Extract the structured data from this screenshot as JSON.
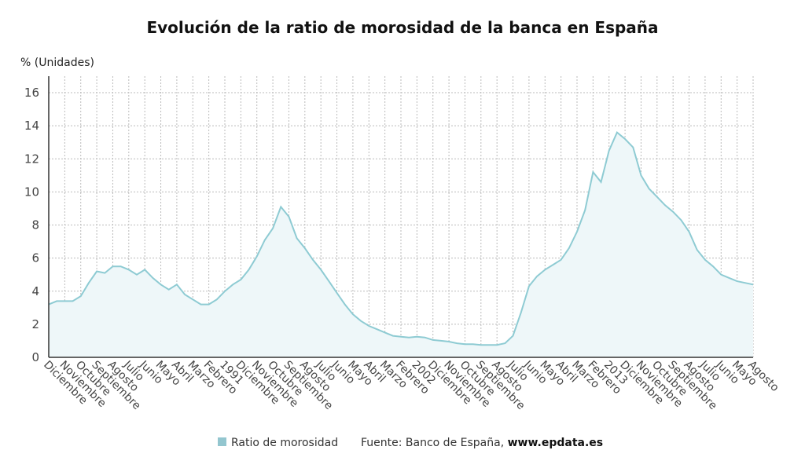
{
  "chart_data": {
    "type": "line",
    "title": "Evolución de la ratio de morosidad de la banca en España",
    "y_axis_label": "% (Unidades)",
    "categories": [
      "Diciembre",
      null,
      "Noviembre",
      null,
      "Octubre",
      null,
      "Septiembre",
      null,
      "Agosto",
      null,
      "Julio",
      null,
      "Junio",
      null,
      "Mayo",
      null,
      "Abril",
      null,
      "Marzo",
      null,
      "Febrero",
      null,
      "1991",
      null,
      "Diciembre",
      null,
      "Noviembre",
      null,
      "Octubre",
      null,
      "Septiembre",
      null,
      "Agosto",
      null,
      "Julio",
      null,
      "Junio",
      null,
      "Mayo",
      null,
      "Abril",
      null,
      "Marzo",
      null,
      "Febrero",
      null,
      "2002",
      null,
      "Diciembre",
      null,
      "Noviembre",
      null,
      "Octubre",
      null,
      "Septiembre",
      null,
      "Agosto",
      null,
      "Julio",
      null,
      "Junio",
      null,
      "Mayo",
      null,
      "Abril",
      null,
      "Marzo",
      null,
      "Febrero",
      null,
      "2013",
      null,
      "Diciembre",
      null,
      "Noviembre",
      null,
      "Octubre",
      null,
      "Septiembre",
      null,
      "Agosto",
      null,
      "Julio",
      null,
      "Junio",
      null,
      "Mayo",
      null,
      "Agosto"
    ],
    "series": [
      {
        "name": "Ratio de morosidad",
        "color": "#8ecbd3",
        "fill": "#eef7f9",
        "values": [
          3.2,
          3.4,
          3.4,
          3.4,
          3.7,
          4.5,
          5.2,
          5.1,
          5.5,
          5.5,
          5.3,
          5.0,
          5.3,
          4.8,
          4.4,
          4.1,
          4.4,
          3.8,
          3.5,
          3.2,
          3.2,
          3.5,
          4.0,
          4.4,
          4.7,
          5.3,
          6.1,
          7.1,
          7.8,
          9.1,
          8.5,
          7.2,
          6.6,
          5.9,
          5.3,
          4.6,
          3.9,
          3.2,
          2.6,
          2.2,
          1.9,
          1.7,
          1.5,
          1.3,
          1.25,
          1.2,
          1.25,
          1.2,
          1.05,
          1.0,
          0.95,
          0.85,
          0.8,
          0.8,
          0.75,
          0.75,
          0.75,
          0.85,
          1.3,
          2.7,
          4.3,
          4.9,
          5.3,
          5.6,
          5.9,
          6.6,
          7.6,
          8.9,
          11.2,
          10.6,
          12.5,
          13.6,
          13.2,
          12.7,
          11.0,
          10.2,
          9.7,
          9.2,
          8.8,
          8.3,
          7.6,
          6.5,
          5.9,
          5.5,
          5.0,
          4.8,
          4.6,
          4.5,
          4.4
        ]
      }
    ],
    "ylim": [
      0,
      17
    ],
    "yticks": [
      0,
      2,
      4,
      6,
      8,
      10,
      12,
      14,
      16
    ],
    "grid": true,
    "legend": "bottom",
    "source": "Fuente: Banco de España,",
    "source_site": "www.epdata.es"
  }
}
